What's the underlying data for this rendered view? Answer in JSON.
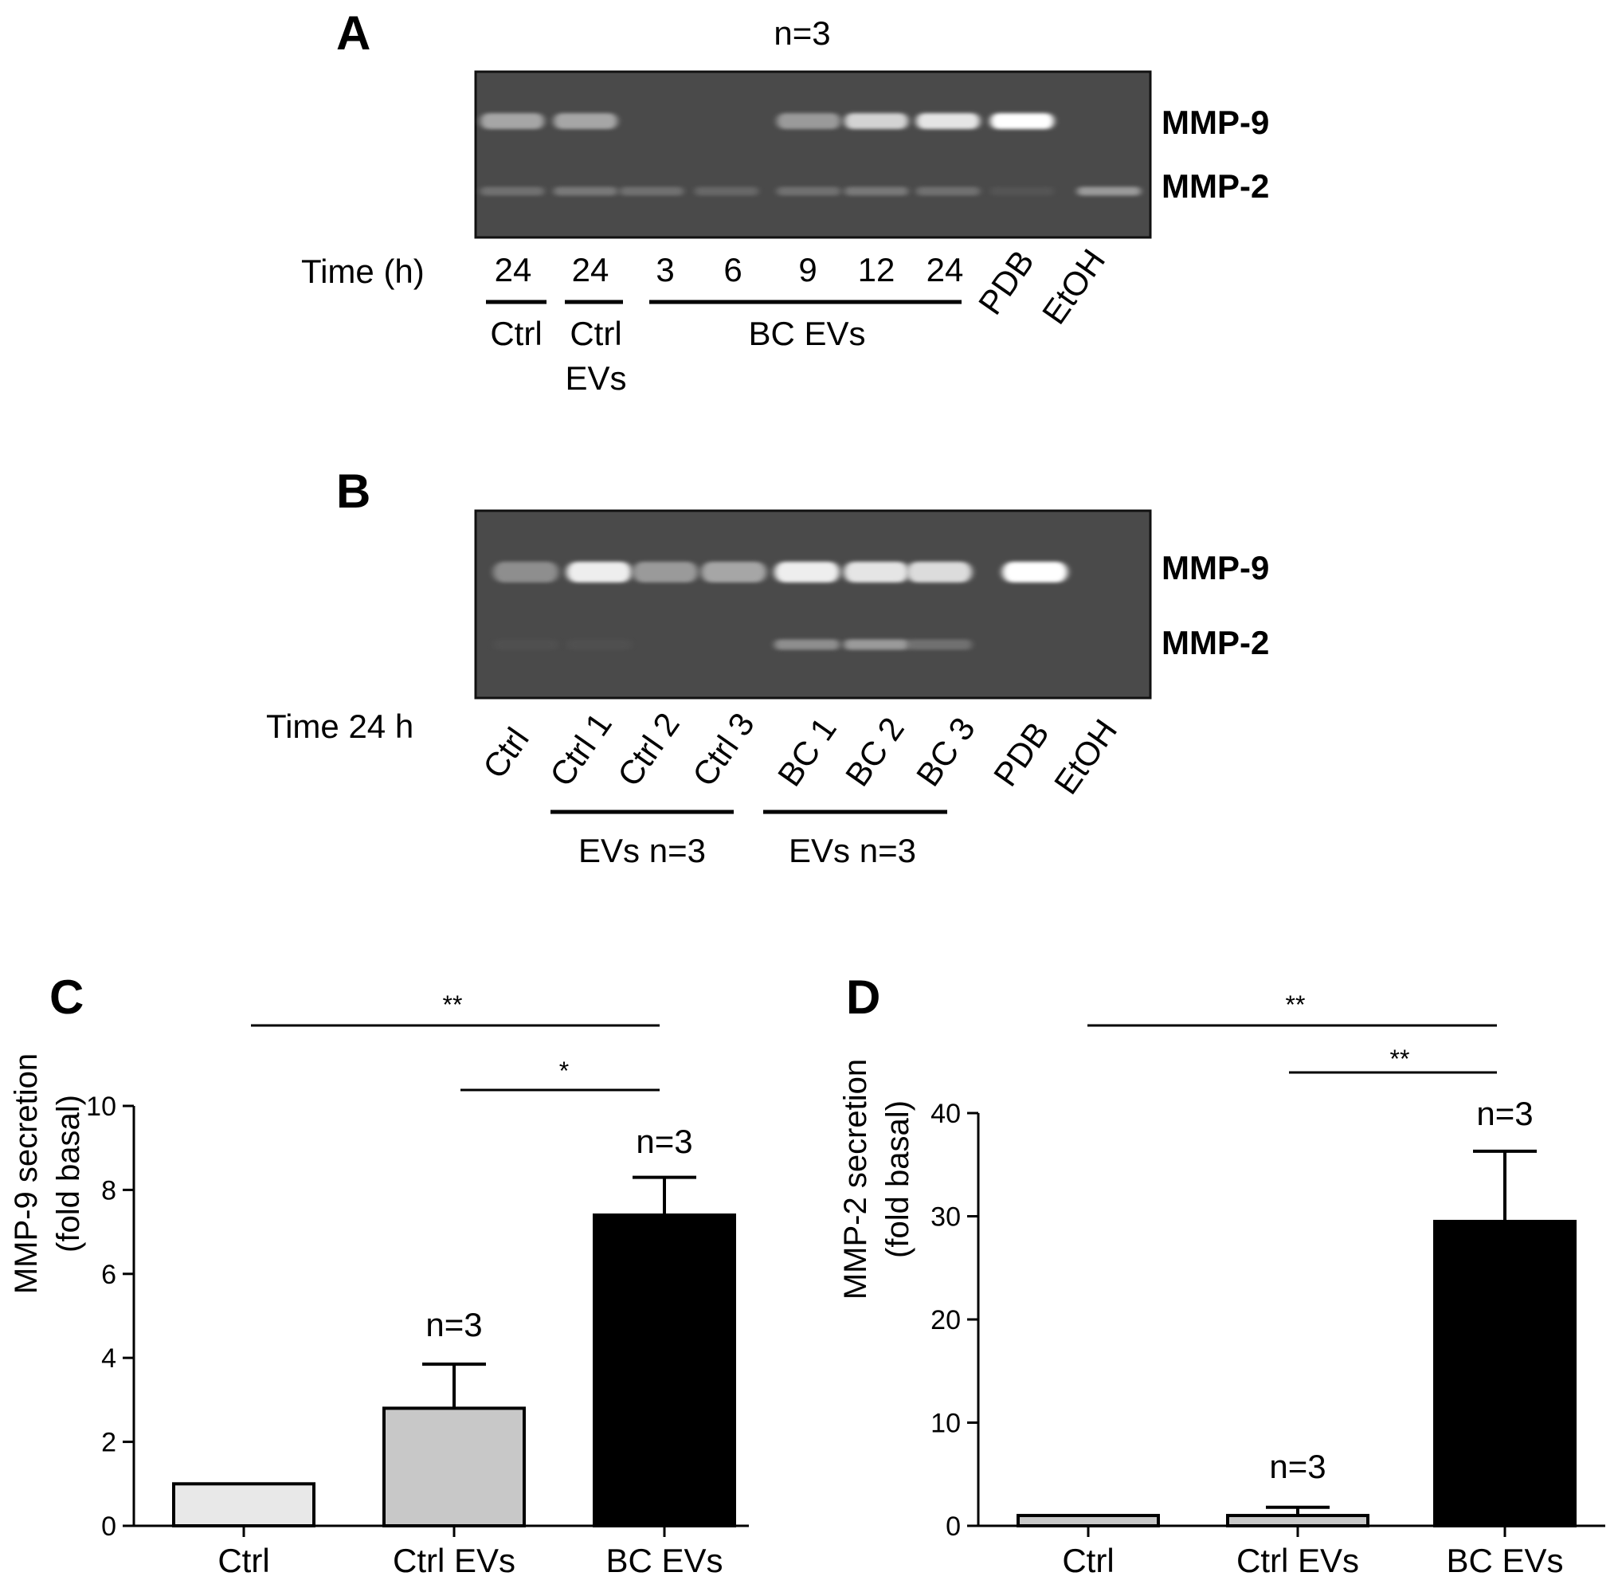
{
  "figure": {
    "panel_a": {
      "letter": "A",
      "n_label": "n=3",
      "band_labels": [
        "MMP-9",
        "MMP-2"
      ],
      "time_label": "Time (h)",
      "lane_times": [
        "24",
        "24",
        "3",
        "6",
        "9",
        "12",
        "24"
      ],
      "rotated_labels": [
        "PDB",
        "EtOH"
      ],
      "group_labels": {
        "ctrl": "Ctrl",
        "ctrl_evs_1": "Ctrl",
        "ctrl_evs_2": "EVs",
        "bc_evs": "BC EVs"
      },
      "band_intensity": {
        "mmp9": [
          0.55,
          0.55,
          0,
          0,
          0.5,
          0.75,
          0.85,
          1.0,
          0
        ],
        "mmp2": [
          0.3,
          0.35,
          0.3,
          0.25,
          0.3,
          0.35,
          0.3,
          0.1,
          0.5
        ]
      }
    },
    "panel_b": {
      "letter": "B",
      "band_labels": [
        "MMP-9",
        "MMP-2"
      ],
      "time_label": "Time 24 h",
      "lane_labels": [
        "Ctrl",
        "Ctrl 1",
        "Ctrl 2",
        "Ctrl 3",
        "BC 1",
        "BC 2",
        "BC 3",
        "PDB",
        "EtOH"
      ],
      "group_labels": [
        "EVs n=3",
        "EVs n=3"
      ],
      "band_intensity": {
        "mmp9": [
          0.45,
          0.9,
          0.5,
          0.55,
          0.9,
          0.85,
          0.8,
          1.0,
          0
        ],
        "mmp2": [
          0.05,
          0.05,
          0,
          0,
          0.45,
          0.5,
          0.3,
          0,
          0
        ]
      }
    },
    "panel_c": {
      "letter": "C",
      "stars_top": "**",
      "stars_mid": "*",
      "n_labels": [
        "n=3",
        "n=3"
      ],
      "colors": [
        "#e8e8e8",
        "#c8c8c8",
        "#000000"
      ]
    },
    "panel_d": {
      "letter": "D",
      "stars_top": "**",
      "stars_mid": "**",
      "n_labels": [
        "n=3",
        "n=3"
      ],
      "colors": [
        "#c8c8c8",
        "#c8c8c8",
        "#000000"
      ]
    }
  },
  "chart_data": [
    {
      "type": "bar",
      "title": "",
      "categories": [
        "Ctrl",
        "Ctrl EVs",
        "BC EVs"
      ],
      "values": [
        1.0,
        2.8,
        7.4
      ],
      "errors": [
        0,
        1.05,
        0.9
      ],
      "ylabel": "MMP-9 secretion (fold basal)",
      "ylabel_lines": [
        "MMP-9 secretion",
        "(fold basal)"
      ],
      "ylim": [
        0,
        10
      ],
      "yticks": [
        0,
        2,
        4,
        6,
        8,
        10
      ],
      "grid": false
    },
    {
      "type": "bar",
      "title": "",
      "categories": [
        "Ctrl",
        "Ctrl EVs",
        "BC EVs"
      ],
      "values": [
        1.0,
        1.0,
        29.5
      ],
      "errors": [
        0,
        0.8,
        6.8
      ],
      "ylabel": "MMP-2 secretion (fold basal)",
      "ylabel_lines": [
        "MMP-2 secretion",
        "(fold basal)"
      ],
      "ylim": [
        0,
        40
      ],
      "yticks": [
        0,
        10,
        20,
        30,
        40
      ],
      "grid": false
    }
  ]
}
